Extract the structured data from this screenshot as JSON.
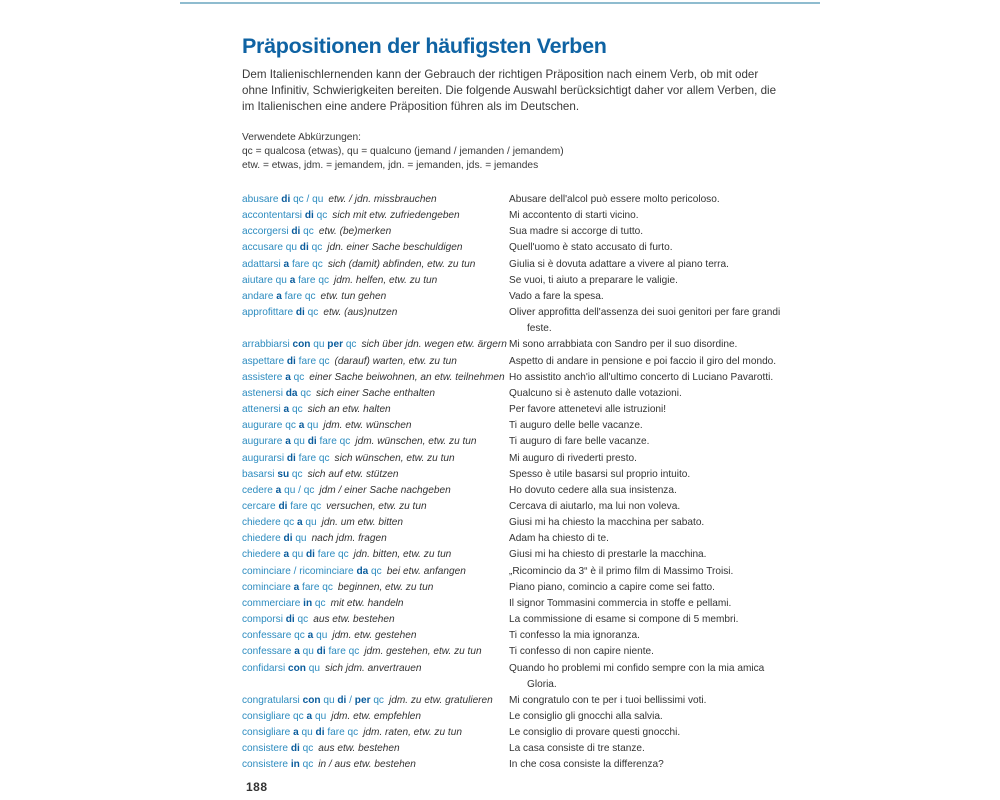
{
  "title": "Präpositionen der häufigsten Verben",
  "intro": "Dem Italienischlernenden kann der Gebrauch der richtigen Präposition nach einem Verb, ob mit oder ohne Infinitiv, Schwierigkeiten bereiten. Die folgende Auswahl berücksichtigt daher vor allem Verben, die im Italienischen eine andere Präposition führen als im Deutschen.",
  "abbreviations": {
    "heading": "Verwendete Abkürzungen:",
    "lines": [
      "qc = qualcosa (etwas), qu = qualcuno (jemand / jemanden / jemandem)",
      "etw. = etwas, jdm. = jemandem, jdn. = jemanden, jds. = jemandes"
    ]
  },
  "colors": {
    "title": "#0f63a3",
    "verb": "#2c8bbf",
    "preposition": "#0a5c9c"
  },
  "entries": [
    {
      "parts": [
        "abusare ",
        "di",
        " qc / qu"
      ],
      "de": "etw. / jdn. missbrauchen",
      "it": [
        "Abusare dell'alcol può essere molto pericoloso."
      ]
    },
    {
      "parts": [
        "accontentarsi ",
        "di",
        " qc"
      ],
      "de": "sich mit etw. zufriedengeben",
      "it": [
        "Mi accontento di starti vicino."
      ]
    },
    {
      "parts": [
        "accorgersi ",
        "di",
        " qc"
      ],
      "de": "etw. (be)merken",
      "it": [
        "Sua madre si accorge di tutto."
      ]
    },
    {
      "parts": [
        "accusare qu ",
        "di",
        " qc"
      ],
      "de": "jdn. einer Sache beschuldigen",
      "it": [
        "Quell'uomo è stato accusato di furto."
      ]
    },
    {
      "parts": [
        "adattarsi ",
        "a",
        " fare qc"
      ],
      "de": "sich (damit) abfinden, etw. zu tun",
      "it": [
        "Giulia si è dovuta adattare a vivere al piano terra."
      ]
    },
    {
      "parts": [
        "aiutare qu ",
        "a",
        " fare qc"
      ],
      "de": "jdm. helfen, etw. zu tun",
      "it": [
        "Se vuoi, ti aiuto a preparare le valigie."
      ]
    },
    {
      "parts": [
        "andare ",
        "a",
        " fare qc"
      ],
      "de": "etw. tun gehen",
      "it": [
        "Vado a fare la spesa."
      ]
    },
    {
      "parts": [
        "approfittare ",
        "di",
        " qc"
      ],
      "de": "etw. (aus)nutzen",
      "it": [
        "Oliver approfitta dell'assenza dei suoi genitori per fare grandi",
        "feste."
      ]
    },
    {
      "parts": [
        "arrabbiarsi ",
        "con",
        " qu ",
        "per",
        " qc"
      ],
      "de": "sich über jdn. wegen etw. ärgern",
      "it": [
        "Mi sono arrabbiata con Sandro per il suo disordine."
      ]
    },
    {
      "parts": [
        "aspettare ",
        "di",
        " fare qc"
      ],
      "de": "(darauf) warten, etw. zu tun",
      "it": [
        "Aspetto di andare in pensione e poi faccio il giro del mondo."
      ]
    },
    {
      "parts": [
        "assistere ",
        "a",
        " qc"
      ],
      "de": "einer Sache beiwohnen, an etw. teilnehmen",
      "it": [
        "Ho assistito anch'io all'ultimo concerto di Luciano Pavarotti."
      ]
    },
    {
      "parts": [
        "astenersi ",
        "da",
        " qc"
      ],
      "de": "sich einer Sache enthalten",
      "it": [
        "Qualcuno si è astenuto dalle votazioni."
      ]
    },
    {
      "parts": [
        "attenersi ",
        "a",
        " qc"
      ],
      "de": "sich an etw. halten",
      "it": [
        "Per favore attenetevi alle istruzioni!"
      ]
    },
    {
      "parts": [
        "augurare qc ",
        "a",
        " qu"
      ],
      "de": "jdm. etw. wünschen",
      "it": [
        "Ti auguro delle belle vacanze."
      ]
    },
    {
      "parts": [
        "augurare ",
        "a",
        " qu ",
        "di",
        " fare qc"
      ],
      "de": "jdm. wünschen, etw. zu tun",
      "it": [
        "Ti auguro di fare belle vacanze."
      ]
    },
    {
      "parts": [
        "augurarsi ",
        "di",
        " fare qc"
      ],
      "de": "sich wünschen, etw. zu tun",
      "it": [
        "Mi auguro di rivederti presto."
      ]
    },
    {
      "parts": [
        "basarsi ",
        "su",
        " qc"
      ],
      "de": "sich auf etw. stützen",
      "it": [
        "Spesso è utile basarsi sul proprio intuito."
      ]
    },
    {
      "parts": [
        "cedere ",
        "a",
        " qu / qc"
      ],
      "de": "jdm / einer Sache nachgeben",
      "it": [
        "Ho dovuto cedere alla sua insistenza."
      ]
    },
    {
      "parts": [
        "cercare ",
        "di",
        " fare qc"
      ],
      "de": "versuchen, etw. zu tun",
      "it": [
        "Cercava di aiutarlo, ma lui non voleva."
      ]
    },
    {
      "parts": [
        "chiedere qc ",
        "a",
        " qu"
      ],
      "de": "jdn. um etw. bitten",
      "it": [
        "Giusi mi ha chiesto la macchina per sabato."
      ]
    },
    {
      "parts": [
        "chiedere ",
        "di",
        " qu"
      ],
      "de": "nach jdm. fragen",
      "it": [
        "Adam ha chiesto di te."
      ]
    },
    {
      "parts": [
        "chiedere ",
        "a",
        " qu ",
        "di",
        " fare qc"
      ],
      "de": "jdn. bitten, etw. zu tun",
      "it": [
        "Giusi mi ha chiesto di prestarle la macchina."
      ]
    },
    {
      "parts": [
        "cominciare / ricominciare ",
        "da",
        " qc"
      ],
      "de": "bei etw. anfangen",
      "it": [
        "„Ricomincio da 3“ è il primo film di Massimo Troisi."
      ]
    },
    {
      "parts": [
        "cominciare ",
        "a",
        " fare qc"
      ],
      "de": "beginnen, etw. zu tun",
      "it": [
        "Piano piano, comincio a capire come sei fatto."
      ]
    },
    {
      "parts": [
        "commerciare ",
        "in",
        " qc"
      ],
      "de": "mit etw. handeln",
      "it": [
        "Il signor Tommasini commercia in stoffe e pellami."
      ]
    },
    {
      "parts": [
        "comporsi ",
        "di",
        " qc"
      ],
      "de": "aus etw. bestehen",
      "it": [
        "La commissione di esame si compone di 5 membri."
      ]
    },
    {
      "parts": [
        "confessare qc ",
        "a",
        " qu"
      ],
      "de": "jdm. etw. gestehen",
      "it": [
        "Ti confesso la mia ignoranza."
      ]
    },
    {
      "parts": [
        "confessare ",
        "a",
        " qu ",
        "di",
        " fare qc"
      ],
      "de": "jdm. gestehen, etw. zu tun",
      "it": [
        "Ti confesso di non capire niente."
      ]
    },
    {
      "parts": [
        "confidarsi ",
        "con",
        " qu"
      ],
      "de": "sich jdm. anvertrauen",
      "it": [
        "Quando ho problemi mi confido sempre con la mia amica",
        "Gloria."
      ]
    },
    {
      "parts": [
        "congratularsi ",
        "con",
        " qu ",
        "di",
        " / ",
        "per",
        " qc"
      ],
      "de": "jdm. zu etw. gratulieren",
      "it": [
        "Mi congratulo con te per i tuoi bellissimi voti."
      ]
    },
    {
      "parts": [
        "consigliare qc ",
        "a",
        " qu"
      ],
      "de": "jdm. etw. empfehlen",
      "it": [
        "Le consiglio gli gnocchi alla salvia."
      ]
    },
    {
      "parts": [
        "consigliare ",
        "a",
        " qu ",
        "di",
        " fare qc"
      ],
      "de": "jdm. raten, etw. zu tun",
      "it": [
        "Le consiglio di provare questi gnocchi."
      ]
    },
    {
      "parts": [
        "consistere ",
        "di",
        " qc"
      ],
      "de": "aus etw. bestehen",
      "it": [
        "La casa consiste di tre stanze."
      ]
    },
    {
      "parts": [
        "consistere ",
        "in",
        " qc"
      ],
      "de": "in / aus etw. bestehen",
      "it": [
        "In che cosa consiste la differenza?"
      ]
    }
  ],
  "page_number": "188"
}
